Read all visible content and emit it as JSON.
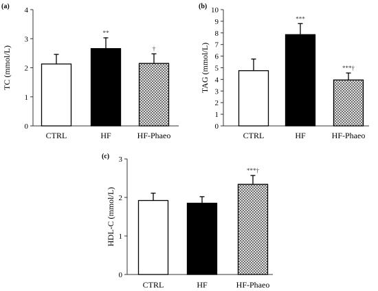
{
  "chart_data": [
    {
      "type": "bar",
      "panel_label": "(a)",
      "ylabel": "TC (mmol/L)",
      "ylim": [
        0,
        4
      ],
      "yticks": [
        "0",
        "1",
        "2",
        "3",
        "4"
      ],
      "categories": [
        "CTRL",
        "HF",
        "HF-Phaeo"
      ],
      "values": [
        2.13,
        2.66,
        2.15
      ],
      "errors": [
        0.33,
        0.37,
        0.33
      ],
      "significance": [
        "",
        "**",
        "†"
      ],
      "bar_fills": [
        "white",
        "black",
        "crosshatch"
      ],
      "grid": false
    },
    {
      "type": "bar",
      "panel_label": "(b)",
      "ylabel": "TAG (mmol/L)",
      "ylim": [
        0,
        10
      ],
      "yticks": [
        "0",
        "1",
        "2",
        "3",
        "4",
        "5",
        "6",
        "7",
        "8",
        "9",
        "10"
      ],
      "categories": [
        "CTRL",
        "HF",
        "HF-Phaeo"
      ],
      "values": [
        4.75,
        7.85,
        3.95
      ],
      "errors": [
        1.0,
        0.95,
        0.6
      ],
      "significance": [
        "",
        "***",
        "***†"
      ],
      "bar_fills": [
        "white",
        "black",
        "crosshatch"
      ],
      "grid": false
    },
    {
      "type": "bar",
      "panel_label": "(c)",
      "ylabel": "HDL-C (mmol/L)",
      "ylim": [
        0,
        3
      ],
      "yticks": [
        "0",
        "1",
        "2",
        "3"
      ],
      "categories": [
        "CTRL",
        "HF",
        "HF-Phaeo"
      ],
      "values": [
        1.92,
        1.85,
        2.34
      ],
      "errors": [
        0.19,
        0.17,
        0.23
      ],
      "significance": [
        "",
        "",
        "***†"
      ],
      "bar_fills": [
        "white",
        "black",
        "crosshatch"
      ],
      "grid": false
    }
  ]
}
